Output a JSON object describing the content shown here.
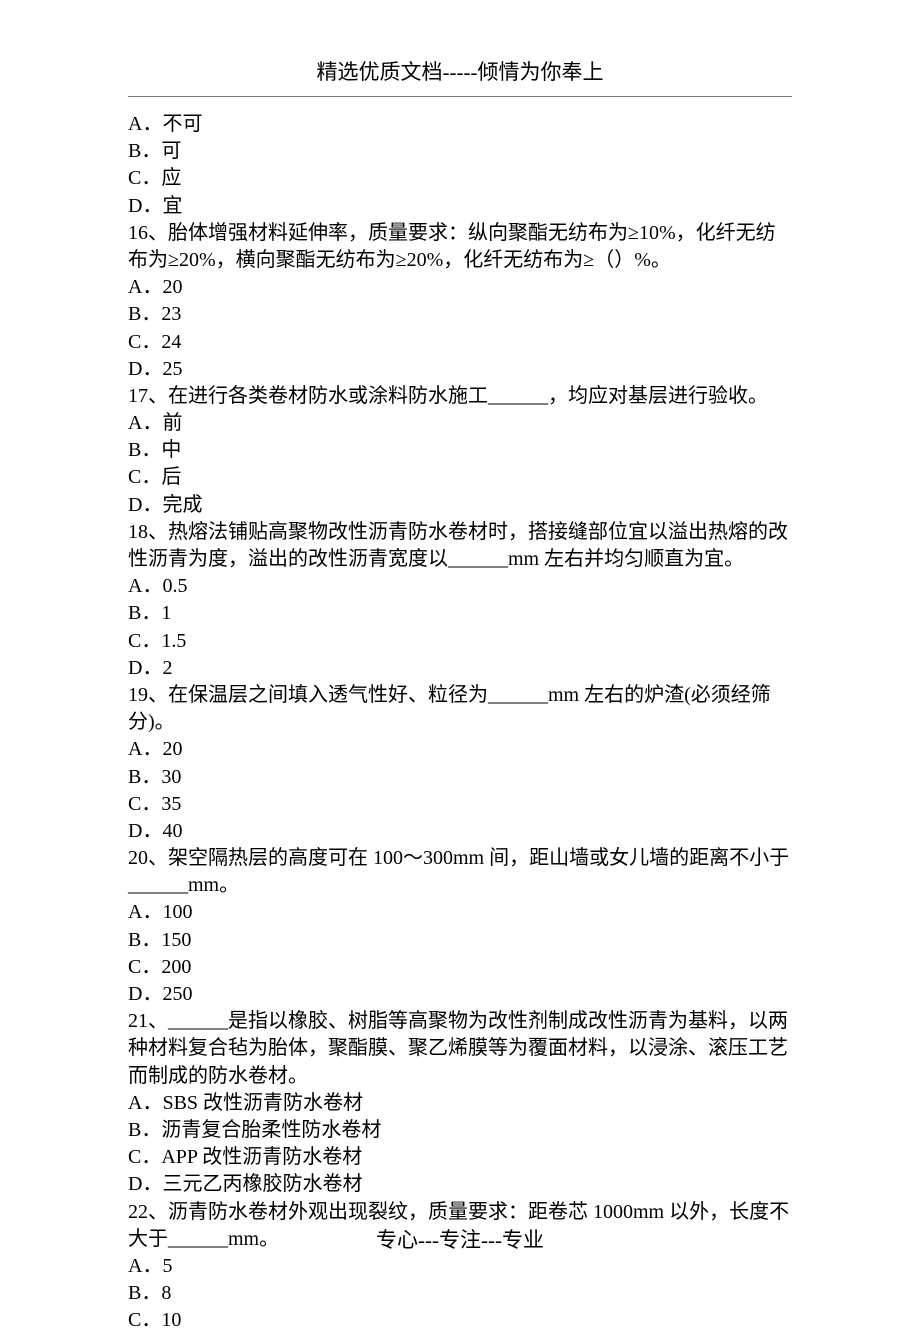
{
  "header": {
    "text": "精选优质文档-----倾情为你奉上"
  },
  "footer": {
    "text": "专心---专注---专业"
  },
  "typography": {
    "body_fontsize_pt": 15,
    "header_fontsize_pt": 15,
    "line_height": 1.36,
    "font_family": "SimSun",
    "text_color": "#000000",
    "background_color": "#ffffff",
    "hr_color": "#7a7a7a"
  },
  "questions": {
    "q_prev_options": [
      {
        "label": "A．不可"
      },
      {
        "label": "B．可"
      },
      {
        "label": "C．应"
      },
      {
        "label": "D．宜"
      }
    ],
    "q16": {
      "stem": "16、胎体增强材料延伸率，质量要求：纵向聚酯无纺布为≥10%，化纤无纺布为≥20%，横向聚酯无纺布为≥20%，化纤无纺布为≥（）%。",
      "opts": [
        "A．20",
        "B．23",
        "C．24",
        "D．25"
      ]
    },
    "q17": {
      "stem": "17、在进行各类卷材防水或涂料防水施工______，均应对基层进行验收。",
      "opts": [
        "A．前",
        "B．中",
        "C．后",
        "D．完成"
      ]
    },
    "q18": {
      "stem": "18、热熔法铺贴高聚物改性沥青防水卷材时，搭接缝部位宜以溢出热熔的改性沥青为度，溢出的改性沥青宽度以______mm 左右并均匀顺直为宜。",
      "opts": [
        "A．0.5",
        "B．1",
        "C．1.5",
        "D．2"
      ]
    },
    "q19": {
      "stem": "19、在保温层之间填入透气性好、粒径为______mm 左右的炉渣(必须经筛分)。",
      "opts": [
        "A．20",
        "B．30",
        "C．35",
        "D．40"
      ]
    },
    "q20": {
      "stem": "20、架空隔热层的高度可在 100～300mm 间，距山墙或女儿墙的距离不小于______mm。",
      "opts": [
        "A．100",
        "B．150",
        "C．200",
        "D．250"
      ]
    },
    "q21": {
      "stem": "21、______是指以橡胶、树脂等高聚物为改性剂制成改性沥青为基料，以两种材料复合毡为胎体，聚酯膜、聚乙烯膜等为覆面材料，以浸涂、滚压工艺而制成的防水卷材。",
      "opts": [
        "A．SBS 改性沥青防水卷材",
        "B．沥青复合胎柔性防水卷材",
        "C．APP 改性沥青防水卷材",
        "D．三元乙丙橡胶防水卷材"
      ]
    },
    "q22": {
      "stem": "22、沥青防水卷材外观出现裂纹，质量要求：距卷芯 1000mm 以外，长度不大于______mm。",
      "opts": [
        "A．5",
        "B．8",
        "C．10"
      ]
    }
  }
}
